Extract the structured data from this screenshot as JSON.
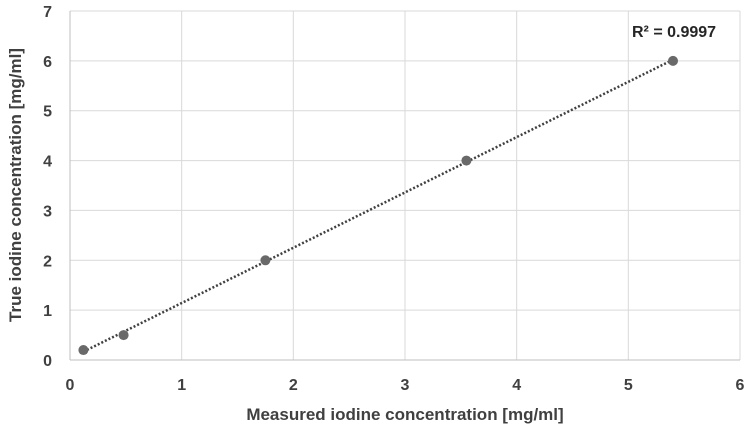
{
  "chart_data": {
    "type": "scatter",
    "xlabel": "Measured iodine concentration [mg/ml]",
    "ylabel": "True iodine concentration [mg/ml]",
    "xlim": [
      0,
      6
    ],
    "ylim": [
      0,
      7
    ],
    "xticks": [
      "0",
      "1",
      "2",
      "3",
      "4",
      "5",
      "6"
    ],
    "yticks": [
      "0",
      "1",
      "2",
      "3",
      "4",
      "5",
      "6",
      "7"
    ],
    "grid": true,
    "series": [
      {
        "x": [
          0.12,
          0.48,
          1.75,
          3.55,
          5.4
        ],
        "y": [
          0.2,
          0.5,
          2.0,
          4.0,
          6.0
        ],
        "color": "#696969"
      }
    ],
    "trendline": {
      "style": "dotted",
      "color": "#404040"
    },
    "annotation": "R² = 0.9997"
  }
}
